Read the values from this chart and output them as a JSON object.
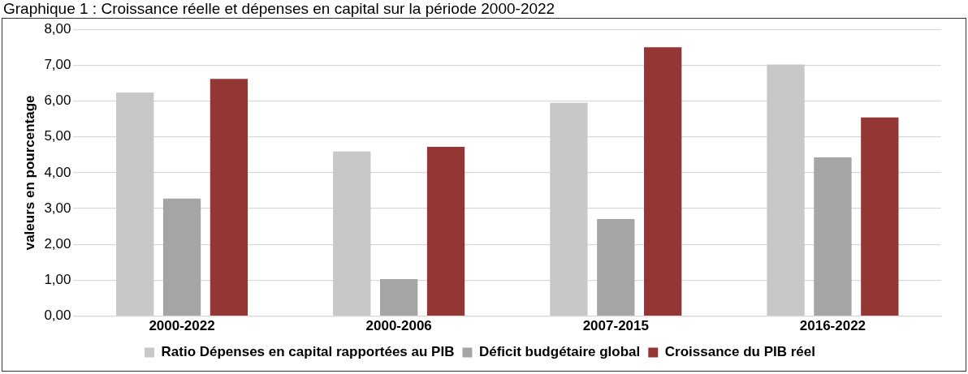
{
  "chart_data": {
    "type": "bar",
    "title": "Graphique 1 : Croissance réelle et dépenses en capital sur la période 2000-2022",
    "ylabel": "valeurs en pourcentage",
    "categories": [
      "2000-2022",
      "2000-2006",
      "2007-2015",
      "2016-2022"
    ],
    "series": [
      {
        "name": "Ratio Dépenses en capital rapportées au PIB",
        "color": "#c8c8c8",
        "values": [
          6.24,
          4.59,
          5.95,
          7.02
        ]
      },
      {
        "name": "Déficit budgétaire global",
        "color": "#a5a5a5",
        "values": [
          3.28,
          1.03,
          2.71,
          4.43
        ]
      },
      {
        "name": "Croissance du PIB réel",
        "color": "#943634",
        "values": [
          6.62,
          4.72,
          7.5,
          5.54
        ]
      }
    ],
    "ylim": [
      0,
      8
    ],
    "yticks": [
      {
        "value": 0,
        "label": "0,00"
      },
      {
        "value": 1,
        "label": "1,00"
      },
      {
        "value": 2,
        "label": "2,00"
      },
      {
        "value": 3,
        "label": "3,00"
      },
      {
        "value": 4,
        "label": "4,00"
      },
      {
        "value": 5,
        "label": "5,00"
      },
      {
        "value": 6,
        "label": "6,00"
      },
      {
        "value": 7,
        "label": "7,00"
      },
      {
        "value": 8,
        "label": "8,00"
      }
    ],
    "grid": "y",
    "legend": "bottom"
  }
}
